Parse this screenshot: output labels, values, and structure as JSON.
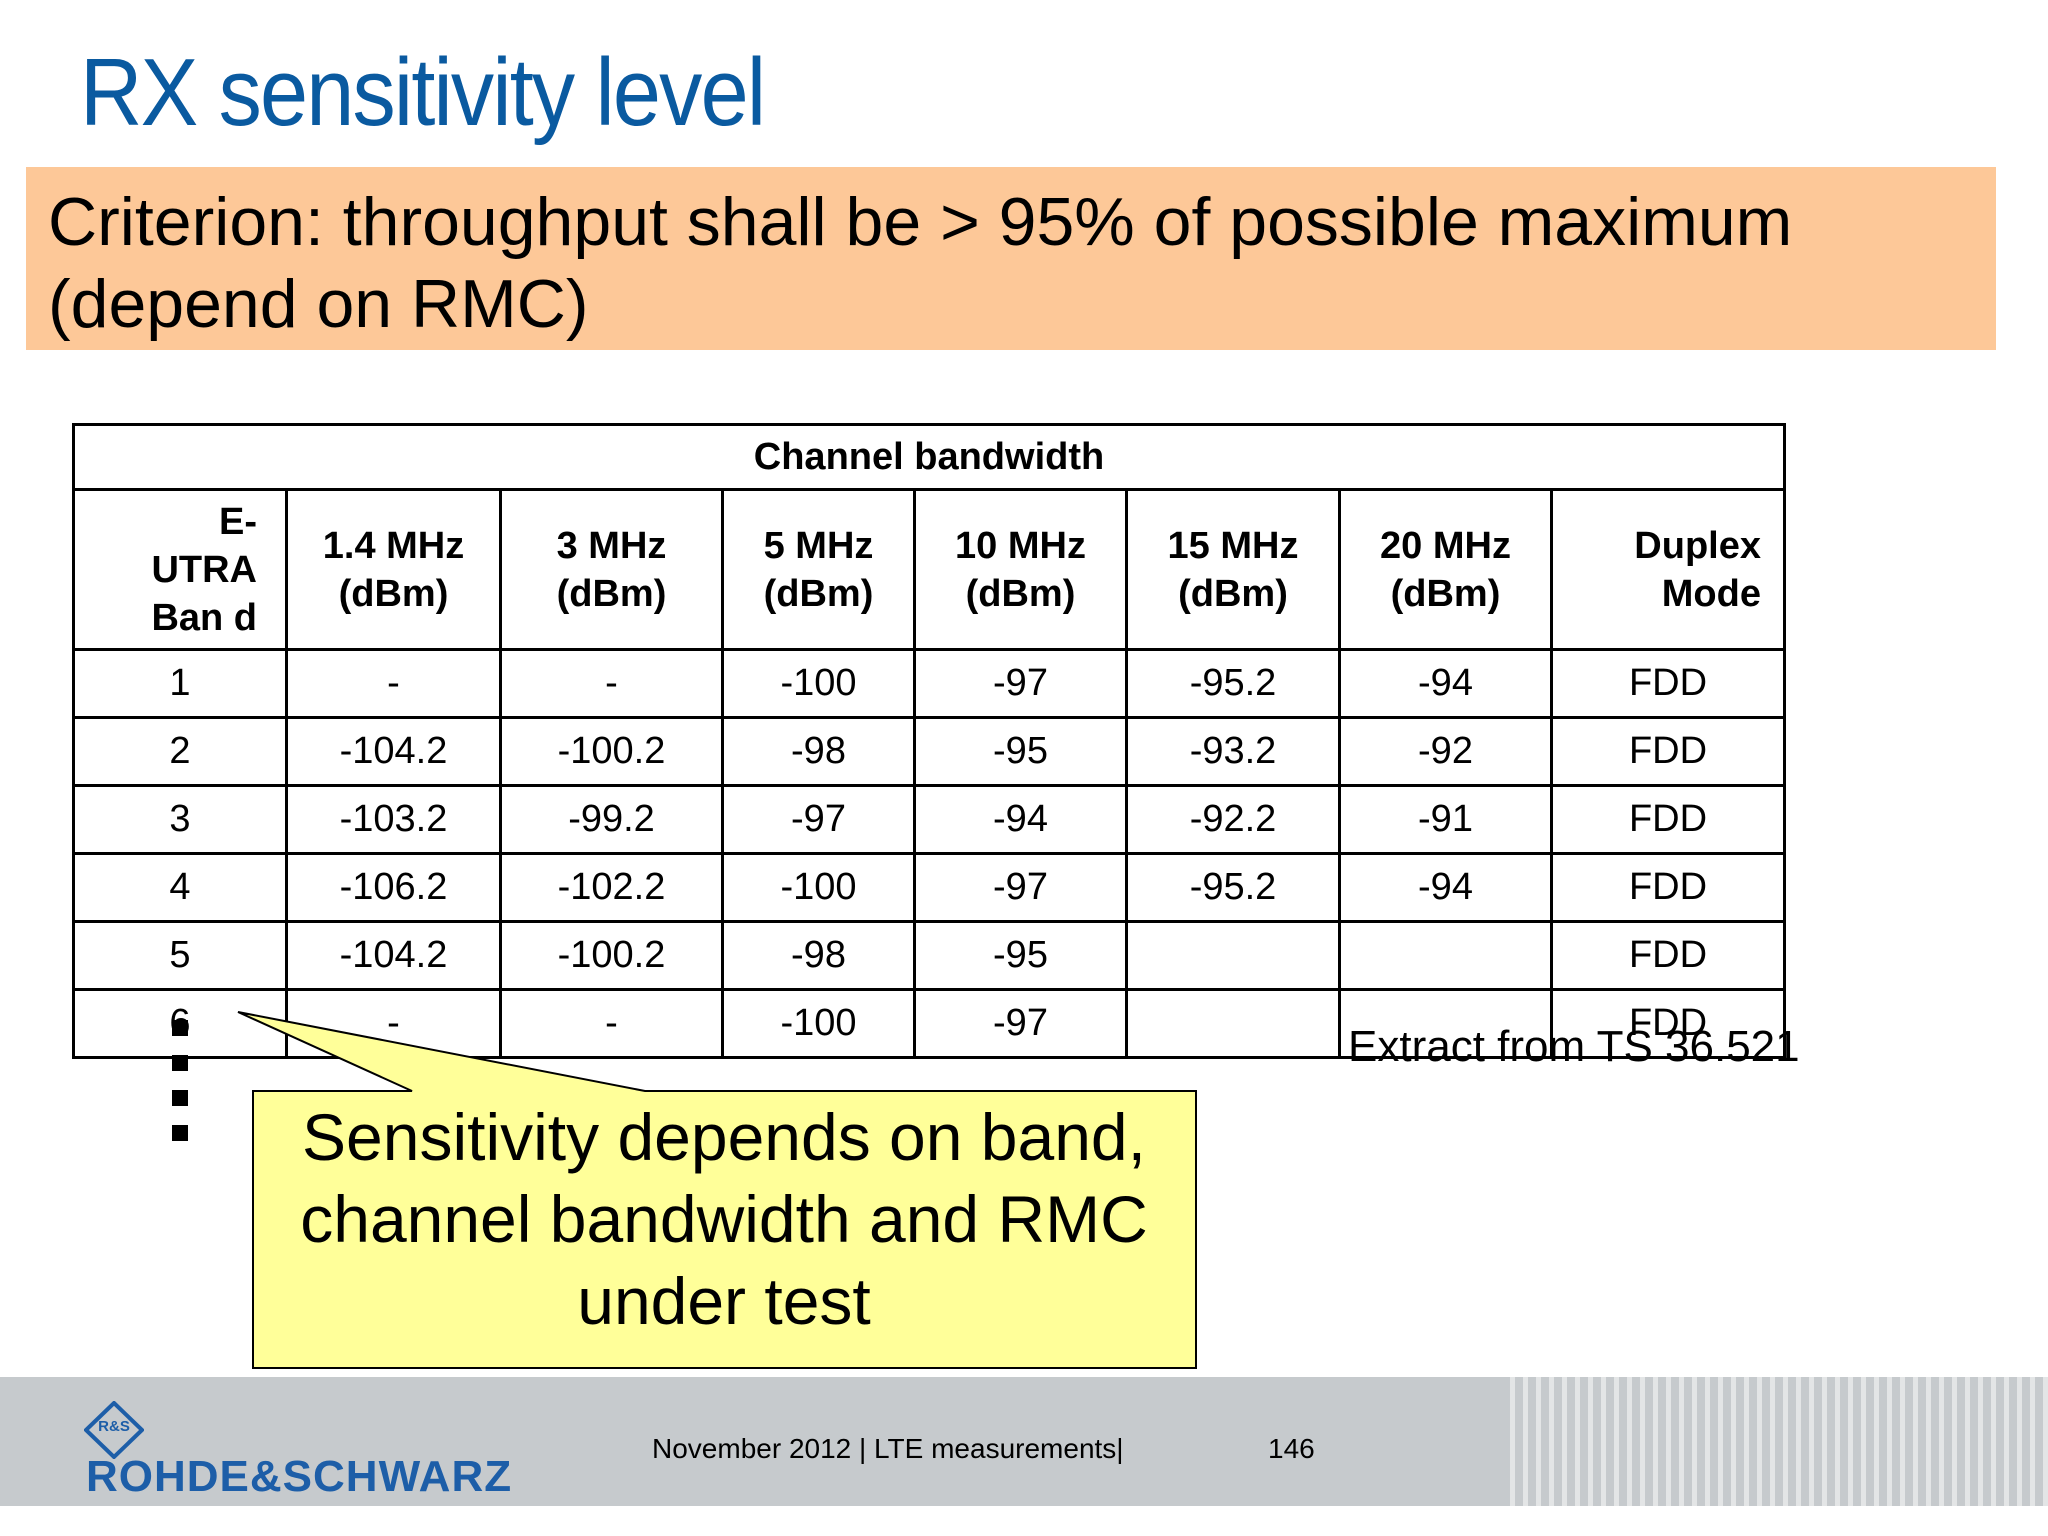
{
  "slide": {
    "title": "RX sensitivity level",
    "criterion": "Criterion: throughput shall be > 95% of possible maximum (depend on RMC)"
  },
  "table": {
    "group_header": "Channel bandwidth",
    "columns": [
      "E-UTRA Ban d",
      "1.4 MHz (dBm)",
      "3 MHz (dBm)",
      "5 MHz (dBm)",
      "10 MHz (dBm)",
      "15 MHz (dBm)",
      "20 MHz (dBm)",
      "Duplex Mode"
    ],
    "rows": [
      [
        "1",
        "-",
        "-",
        "-100",
        "-97",
        "-95.2",
        "-94",
        "FDD"
      ],
      [
        "2",
        "-104.2",
        "-100.2",
        "-98",
        "-95",
        "-93.2",
        "-92",
        "FDD"
      ],
      [
        "3",
        "-103.2",
        "-99.2",
        "-97",
        "-94",
        "-92.2",
        "-91",
        "FDD"
      ],
      [
        "4",
        "-106.2",
        "-102.2",
        "-100",
        "-97",
        "-95.2",
        "-94",
        "FDD"
      ],
      [
        "5",
        "-104.2",
        "-100.2",
        "-98",
        "-95",
        "",
        "",
        "FDD"
      ],
      [
        "6",
        "-",
        "-",
        "-100",
        "-97",
        "",
        "",
        "FDD"
      ]
    ]
  },
  "extract_note": "Extract from TS 36.521",
  "callout": {
    "text": "Sensitivity depends on band, channel bandwidth and RMC under test",
    "fill": "#ffff99"
  },
  "footer": {
    "logo_text": "ROHDE&SCHWARZ",
    "logo_mark": "R&S",
    "info": "November 2012 |  LTE measurements|",
    "page_number": "146"
  },
  "colors": {
    "title": "#0a5aa0",
    "criterion_bg": "#fdc898",
    "footer_bg": "#c6cacd",
    "logo": "#1d5ea8"
  }
}
